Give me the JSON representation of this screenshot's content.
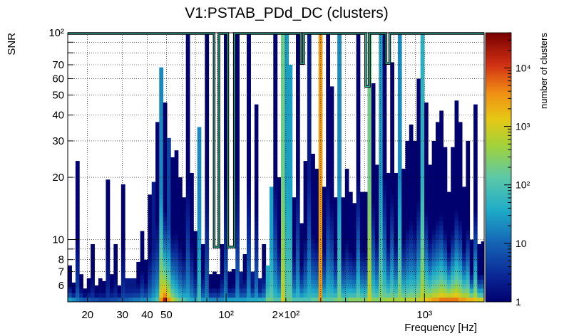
{
  "chart_data": {
    "type": "heatmap",
    "title": "V1:PSTAB_PDd_DC (clusters)",
    "xlabel": "Frequency [Hz]",
    "ylabel": "SNR",
    "zlabel": "number of clusters",
    "x_scale": "log",
    "y_scale": "log",
    "z_scale": "log",
    "xlim": [
      15.9,
      2000
    ],
    "ylim": [
      5,
      100
    ],
    "zlim": [
      1,
      40000
    ],
    "grid": true,
    "x_ticks": [
      {
        "value": 20,
        "label": "20"
      },
      {
        "value": 30,
        "label": "30"
      },
      {
        "value": 40,
        "label": "40"
      },
      {
        "value": 50,
        "label": "50"
      },
      {
        "value": 100,
        "label": "10²"
      },
      {
        "value": 200,
        "label": "2×10²"
      },
      {
        "value": 1000,
        "label": "10³"
      }
    ],
    "y_ticks": [
      {
        "value": 6,
        "label": "6"
      },
      {
        "value": 7,
        "label": "7"
      },
      {
        "value": 8,
        "label": "8"
      },
      {
        "value": 10,
        "label": "10"
      },
      {
        "value": 20,
        "label": "20"
      },
      {
        "value": 30,
        "label": "30"
      },
      {
        "value": 40,
        "label": "40"
      },
      {
        "value": 50,
        "label": "50"
      },
      {
        "value": 60,
        "label": "60"
      },
      {
        "value": 70,
        "label": "70"
      },
      {
        "value": 100,
        "label": "10²"
      }
    ],
    "z_ticks": [
      {
        "value": 1,
        "label": "1"
      },
      {
        "value": 10,
        "label": "10"
      },
      {
        "value": 100,
        "label": "10²"
      },
      {
        "value": 1000,
        "label": "10³"
      },
      {
        "value": 10000,
        "label": "10⁴"
      }
    ],
    "legend": "colorbar-right",
    "columns": [
      {
        "f": 16.3,
        "snr_max": 7.5,
        "z_top": 1,
        "z_base": 30
      },
      {
        "f": 17.0,
        "snr_max": 6.2,
        "z_top": 1,
        "z_base": 20
      },
      {
        "f": 17.8,
        "snr_max": 24,
        "z_top": 1,
        "z_base": 15
      },
      {
        "f": 18.6,
        "snr_max": 6.8,
        "z_top": 1,
        "z_base": 10
      },
      {
        "f": 19.4,
        "snr_max": 5.8,
        "z_top": 1,
        "z_base": 8
      },
      {
        "f": 20.3,
        "snr_max": 6.5,
        "z_top": 1,
        "z_base": 8
      },
      {
        "f": 21.2,
        "snr_max": 9.5,
        "z_top": 1,
        "z_base": 6
      },
      {
        "f": 22.2,
        "snr_max": 6.0,
        "z_top": 1,
        "z_base": 6
      },
      {
        "f": 23.2,
        "snr_max": 6.5,
        "z_top": 1,
        "z_base": 5
      },
      {
        "f": 24.2,
        "snr_max": 6.3,
        "z_top": 1,
        "z_base": 5
      },
      {
        "f": 25.3,
        "snr_max": 19.5,
        "z_top": 1,
        "z_base": 5
      },
      {
        "f": 26.5,
        "snr_max": 6.8,
        "z_top": 1,
        "z_base": 6
      },
      {
        "f": 27.7,
        "snr_max": 9.5,
        "z_top": 1,
        "z_base": 6
      },
      {
        "f": 28.9,
        "snr_max": 6.0,
        "z_top": 1,
        "z_base": 8
      },
      {
        "f": 30.2,
        "snr_max": 18.5,
        "z_top": 1,
        "z_base": 8
      },
      {
        "f": 31.6,
        "snr_max": 6.5,
        "z_top": 2,
        "z_base": 10
      },
      {
        "f": 33.0,
        "snr_max": 6.5,
        "z_top": 2,
        "z_base": 12
      },
      {
        "f": 34.5,
        "snr_max": 6.5,
        "z_top": 2,
        "z_base": 15
      },
      {
        "f": 36.1,
        "snr_max": 7.8,
        "z_top": 1,
        "z_base": 15
      },
      {
        "f": 37.7,
        "snr_max": 11,
        "z_top": 1,
        "z_base": 20
      },
      {
        "f": 39.4,
        "snr_max": 8.0,
        "z_top": 1,
        "z_base": 20
      },
      {
        "f": 41.2,
        "snr_max": 16.5,
        "z_top": 1,
        "z_base": 30
      },
      {
        "f": 43.1,
        "snr_max": 19,
        "z_top": 2,
        "z_base": 50
      },
      {
        "f": 45.0,
        "snr_max": 37,
        "z_top": 1,
        "z_base": 100
      },
      {
        "f": 47.0,
        "snr_max": 68,
        "z_top": 20,
        "z_base": 3000
      },
      {
        "f": 49.2,
        "snr_max": 46,
        "z_top": 1,
        "z_base": 20000
      },
      {
        "f": 51.4,
        "snr_max": 31,
        "z_top": 5,
        "z_base": 3000
      },
      {
        "f": 53.7,
        "snr_max": 25,
        "z_top": 1,
        "z_base": 800
      },
      {
        "f": 56.1,
        "snr_max": 27,
        "z_top": 1,
        "z_base": 300
      },
      {
        "f": 58.6,
        "snr_max": 20,
        "z_top": 1,
        "z_base": 150
      },
      {
        "f": 61.3,
        "snr_max": 16,
        "z_top": 1,
        "z_base": 100
      },
      {
        "f": 64.1,
        "snr_max": 100,
        "z_top": 1,
        "z_base": 60
      },
      {
        "f": 67.0,
        "snr_max": 21,
        "z_top": 1,
        "z_base": 40
      },
      {
        "f": 70.0,
        "snr_max": 11,
        "z_top": 1,
        "z_base": 30
      },
      {
        "f": 73.1,
        "snr_max": 35,
        "z_top": 20,
        "z_base": 100
      },
      {
        "f": 76.4,
        "snr_max": 9.5,
        "z_top": 1,
        "z_base": 30
      },
      {
        "f": 79.9,
        "snr_max": 100,
        "z_top": 1,
        "z_base": 30
      },
      {
        "f": 83.5,
        "snr_max": 6.8,
        "z_top": 1,
        "z_base": 20
      },
      {
        "f": 87.3,
        "snr_max": 7.0,
        "z_top": 1,
        "z_base": 20
      },
      {
        "f": 91.2,
        "snr_max": 6.8,
        "z_top": 1,
        "z_base": 20
      },
      {
        "f": 95.3,
        "snr_max": 9.5,
        "z_top": 1,
        "z_base": 20
      },
      {
        "f": 99.6,
        "snr_max": 100,
        "z_top": 1,
        "z_base": 30
      },
      {
        "f": 104,
        "snr_max": 7.0,
        "z_top": 1,
        "z_base": 30
      },
      {
        "f": 109,
        "snr_max": 7.2,
        "z_top": 1,
        "z_base": 30
      },
      {
        "f": 114,
        "snr_max": 100,
        "z_top": 1,
        "z_base": 30
      },
      {
        "f": 119,
        "snr_max": 7.0,
        "z_top": 2,
        "z_base": 30
      },
      {
        "f": 124,
        "snr_max": 8.5,
        "z_top": 1,
        "z_base": 30
      },
      {
        "f": 130,
        "snr_max": 100,
        "z_top": 1,
        "z_base": 40
      },
      {
        "f": 136,
        "snr_max": 7.0,
        "z_top": 2,
        "z_base": 40
      },
      {
        "f": 142,
        "snr_max": 45,
        "z_top": 1,
        "z_base": 40
      },
      {
        "f": 148,
        "snr_max": 6.5,
        "z_top": 2,
        "z_base": 50
      },
      {
        "f": 155,
        "snr_max": 9.5,
        "z_top": 1,
        "z_base": 50
      },
      {
        "f": 162,
        "snr_max": 7.5,
        "z_top": 40,
        "z_base": 200
      },
      {
        "f": 169,
        "snr_max": 18,
        "z_top": 30,
        "z_base": 200
      },
      {
        "f": 177,
        "snr_max": 100,
        "z_top": 1,
        "z_base": 100
      },
      {
        "f": 185,
        "snr_max": 20,
        "z_top": 1,
        "z_base": 100
      },
      {
        "f": 193,
        "snr_max": 100,
        "z_top": 200,
        "z_base": 1000
      },
      {
        "f": 202,
        "snr_max": 100,
        "z_top": 30,
        "z_base": 200
      },
      {
        "f": 211,
        "snr_max": 70,
        "z_top": 30,
        "z_base": 200
      },
      {
        "f": 220,
        "snr_max": 16,
        "z_top": 1,
        "z_base": 100
      },
      {
        "f": 230,
        "snr_max": 100,
        "z_top": 1,
        "z_base": 100
      },
      {
        "f": 240,
        "snr_max": 12,
        "z_top": 1,
        "z_base": 100
      },
      {
        "f": 251,
        "snr_max": 24,
        "z_top": 1,
        "z_base": 100
      },
      {
        "f": 262,
        "snr_max": 100,
        "z_top": 2,
        "z_base": 100
      },
      {
        "f": 274,
        "snr_max": 26,
        "z_top": 1,
        "z_base": 150
      },
      {
        "f": 286,
        "snr_max": 22,
        "z_top": 1,
        "z_base": 150
      },
      {
        "f": 299,
        "snr_max": 100,
        "z_top": 3000,
        "z_base": 3000
      },
      {
        "f": 312,
        "snr_max": 18,
        "z_top": 1,
        "z_base": 150
      },
      {
        "f": 326,
        "snr_max": 100,
        "z_top": 1,
        "z_base": 150
      },
      {
        "f": 341,
        "snr_max": 55,
        "z_top": 1,
        "z_base": 150
      },
      {
        "f": 356,
        "snr_max": 16,
        "z_top": 1,
        "z_base": 200
      },
      {
        "f": 372,
        "snr_max": 100,
        "z_top": 20,
        "z_base": 300
      },
      {
        "f": 389,
        "snr_max": 16,
        "z_top": 1,
        "z_base": 200
      },
      {
        "f": 406,
        "snr_max": 22,
        "z_top": 1,
        "z_base": 200
      },
      {
        "f": 424,
        "snr_max": 17,
        "z_top": 1,
        "z_base": 300
      },
      {
        "f": 443,
        "snr_max": 15,
        "z_top": 1,
        "z_base": 300
      },
      {
        "f": 463,
        "snr_max": 100,
        "z_top": 1,
        "z_base": 300
      },
      {
        "f": 484,
        "snr_max": 17,
        "z_top": 1,
        "z_base": 300
      },
      {
        "f": 505,
        "snr_max": 17,
        "z_top": 1,
        "z_base": 300
      },
      {
        "f": 528,
        "snr_max": 100,
        "z_top": 200,
        "z_base": 1000
      },
      {
        "f": 552,
        "snr_max": 57,
        "z_top": 1,
        "z_base": 300
      },
      {
        "f": 576,
        "snr_max": 23,
        "z_top": 1,
        "z_base": 300
      },
      {
        "f": 602,
        "snr_max": 100,
        "z_top": 30,
        "z_base": 400
      },
      {
        "f": 629,
        "snr_max": 100,
        "z_top": 1,
        "z_base": 400
      },
      {
        "f": 657,
        "snr_max": 21,
        "z_top": 1,
        "z_base": 500
      },
      {
        "f": 687,
        "snr_max": 72,
        "z_top": 1,
        "z_base": 500
      },
      {
        "f": 718,
        "snr_max": 21,
        "z_top": 1,
        "z_base": 500
      },
      {
        "f": 750,
        "snr_max": 100,
        "z_top": 20,
        "z_base": 500
      },
      {
        "f": 784,
        "snr_max": 22,
        "z_top": 1,
        "z_base": 600
      },
      {
        "f": 819,
        "snr_max": 30,
        "z_top": 1,
        "z_base": 600
      },
      {
        "f": 856,
        "snr_max": 36,
        "z_top": 1,
        "z_base": 700
      },
      {
        "f": 894,
        "snr_max": 30,
        "z_top": 1,
        "z_base": 700
      },
      {
        "f": 934,
        "snr_max": 60,
        "z_top": 1,
        "z_base": 800
      },
      {
        "f": 976,
        "snr_max": 100,
        "z_top": 50,
        "z_base": 1000
      },
      {
        "f": 1020,
        "snr_max": 46,
        "z_top": 1,
        "z_base": 1500
      },
      {
        "f": 1066,
        "snr_max": 23,
        "z_top": 1,
        "z_base": 2000
      },
      {
        "f": 1114,
        "snr_max": 30,
        "z_top": 1,
        "z_base": 3000
      },
      {
        "f": 1164,
        "snr_max": 37,
        "z_top": 1,
        "z_base": 3000
      },
      {
        "f": 1216,
        "snr_max": 42,
        "z_top": 1,
        "z_base": 5000
      },
      {
        "f": 1271,
        "snr_max": 28,
        "z_top": 1,
        "z_base": 5000
      },
      {
        "f": 1328,
        "snr_max": 17,
        "z_top": 1,
        "z_base": 5000
      },
      {
        "f": 1388,
        "snr_max": 28,
        "z_top": 1,
        "z_base": 5000
      },
      {
        "f": 1450,
        "snr_max": 47,
        "z_top": 1,
        "z_base": 5000
      },
      {
        "f": 1515,
        "snr_max": 37,
        "z_top": 1,
        "z_base": 3000
      },
      {
        "f": 1583,
        "snr_max": 18,
        "z_top": 1,
        "z_base": 3000
      },
      {
        "f": 1654,
        "snr_max": 30,
        "z_top": 1,
        "z_base": 2000
      },
      {
        "f": 1729,
        "snr_max": 10,
        "z_top": 1,
        "z_base": 2000
      },
      {
        "f": 1806,
        "snr_max": 45,
        "z_top": 1,
        "z_base": 1500
      },
      {
        "f": 1887,
        "snr_max": 9.5,
        "z_top": 1,
        "z_base": 1000
      },
      {
        "f": 1972,
        "snr_max": 9.8,
        "z_top": 1,
        "z_base": 1000
      }
    ],
    "outline_regions": [
      {
        "f_range": [
          87,
          92
        ],
        "snr_min": 9.2
      },
      {
        "f_range": [
          102,
          110
        ],
        "snr_min": 9.2
      },
      {
        "f_range": [
          238,
          246
        ],
        "snr_min": 71
      },
      {
        "f_range": [
          505,
          528
        ],
        "snr_min": 55
      },
      {
        "f_range": [
          640,
          668
        ],
        "snr_min": 71
      }
    ]
  }
}
